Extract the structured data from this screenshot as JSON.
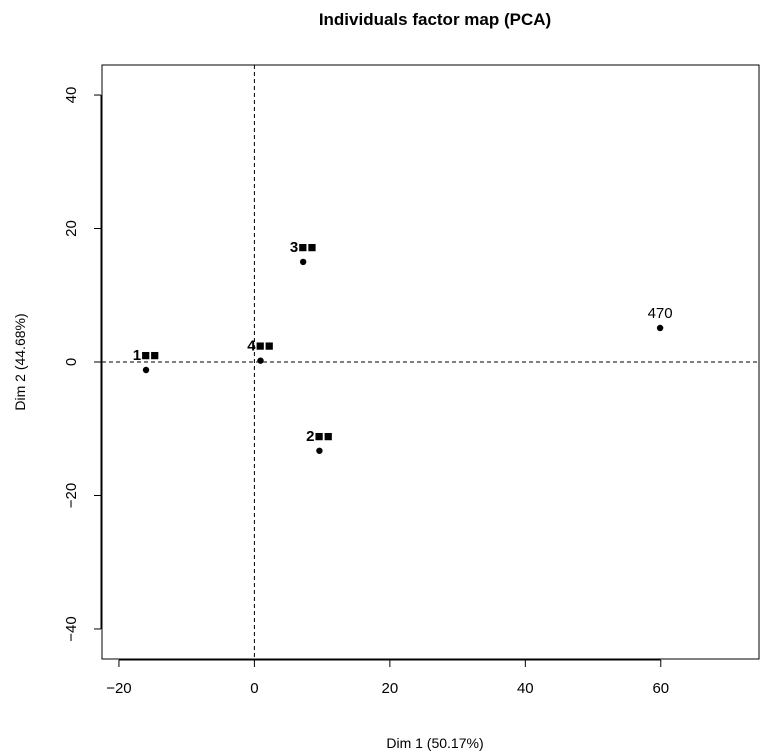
{
  "chart_data": {
    "type": "scatter",
    "title": "Individuals factor map (PCA)",
    "xlabel": "Dim 1 (50.17%)",
    "ylabel": "Dim 2 (44.68%)",
    "xlim": [
      -22.5,
      74.5
    ],
    "ylim": [
      -44.5,
      44.5
    ],
    "xticks": [
      -20,
      0,
      20,
      40,
      60
    ],
    "yticks": [
      -40,
      -20,
      0,
      20,
      40
    ],
    "xtick_labels": [
      "−20",
      "0",
      "20",
      "40",
      "60"
    ],
    "ytick_labels": [
      "−40",
      "−20",
      "0",
      "20",
      "40"
    ],
    "reference_lines": {
      "x": 0,
      "y": 0
    },
    "grid": false,
    "points": [
      {
        "x": -16.0,
        "y": -1.2,
        "label": "1■■",
        "overlapping": true
      },
      {
        "x": 0.9,
        "y": 0.2,
        "label": "4■■",
        "overlapping": true
      },
      {
        "x": 7.2,
        "y": 15.0,
        "label": "3■■",
        "overlapping": true
      },
      {
        "x": 9.6,
        "y": -13.3,
        "label": "2■■",
        "overlapping": true
      },
      {
        "x": 59.9,
        "y": 5.1,
        "label": "470",
        "overlapping": false
      }
    ]
  }
}
